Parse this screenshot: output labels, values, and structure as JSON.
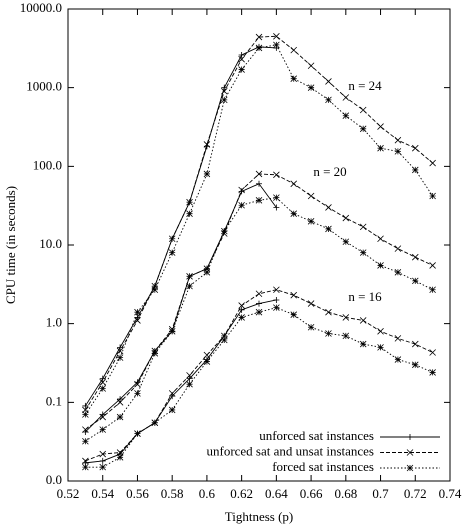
{
  "chart_data": {
    "type": "line",
    "xlabel": "Tightness (p)",
    "ylabel": "CPU time (in seconds)",
    "log_y": true,
    "legend": "lower right",
    "x": [
      0.53,
      0.54,
      0.55,
      0.56,
      0.57,
      0.58,
      0.59,
      0.6,
      0.61,
      0.62,
      0.63,
      0.64,
      0.65,
      0.66,
      0.67,
      0.68,
      0.69,
      0.7,
      0.71,
      0.72,
      0.73
    ],
    "annotations": [
      "n = 16",
      "n = 20",
      "n = 24"
    ],
    "series": [
      {
        "name": "unforced sat instances",
        "color": "#000000",
        "dash": "solid",
        "marker": "+",
        "values_by_n": [
          [
            0.017,
            0.018,
            0.022,
            0.04,
            0.055,
            0.12,
            0.2,
            0.35,
            0.7,
            1.5,
            1.8,
            2,
            null,
            null,
            null,
            null,
            null,
            null,
            null,
            null,
            null
          ],
          [
            0.042,
            0.07,
            0.11,
            0.18,
            0.45,
            0.8,
            4,
            5,
            15,
            48,
            60,
            30,
            null,
            null,
            null,
            null,
            null,
            null,
            null,
            null,
            null
          ],
          [
            0.09,
            0.2,
            0.5,
            1.2,
            3,
            12,
            35,
            180,
            1000,
            2600,
            3300,
            3200,
            null,
            null,
            null,
            null,
            null,
            null,
            null,
            null,
            null
          ]
        ]
      },
      {
        "name": "unforced sat and unsat instances",
        "color": "#000000",
        "dash": "dashed",
        "marker": "x",
        "values_by_n": [
          [
            0.018,
            0.022,
            0.023,
            0.04,
            0.055,
            0.13,
            0.22,
            0.4,
            0.7,
            1.7,
            2.4,
            2.7,
            2.3,
            1.8,
            1.4,
            1.2,
            1.1,
            0.8,
            0.65,
            0.55,
            0.43
          ],
          [
            0.045,
            0.065,
            0.1,
            0.17,
            0.45,
            0.85,
            4,
            5,
            14,
            50,
            80,
            78,
            60,
            42,
            30,
            22,
            17,
            12,
            9,
            7,
            5.5
          ],
          [
            0.08,
            0.18,
            0.45,
            1.1,
            3,
            12,
            35,
            190,
            900,
            2300,
            4400,
            4500,
            3000,
            1900,
            1200,
            750,
            520,
            320,
            215,
            170,
            110
          ]
        ]
      },
      {
        "name": "forced sat instances",
        "color": "#000000",
        "dash": "dotted",
        "marker": "*",
        "values_by_n": [
          [
            0.015,
            0.015,
            0.02,
            0.04,
            0.055,
            0.08,
            0.17,
            0.33,
            0.62,
            1.2,
            1.4,
            1.6,
            1.3,
            0.9,
            0.75,
            0.7,
            0.55,
            0.5,
            0.35,
            0.3,
            0.24
          ],
          [
            0.032,
            0.045,
            0.065,
            0.13,
            0.42,
            0.8,
            3,
            4.5,
            15,
            32,
            37,
            40,
            25,
            20,
            16,
            11,
            8,
            5.5,
            4.5,
            3.5,
            2.7
          ],
          [
            0.07,
            0.15,
            0.37,
            1.4,
            2.7,
            8,
            25,
            80,
            700,
            1700,
            3200,
            3500,
            1300,
            1000,
            700,
            440,
            300,
            170,
            155,
            90,
            42
          ]
        ]
      }
    ],
    "xlim": [
      0.52,
      0.74
    ],
    "xticks": [
      0.52,
      0.54,
      0.56,
      0.58,
      0.6,
      0.62,
      0.64,
      0.66,
      0.68,
      0.7,
      0.72,
      0.74
    ],
    "ylim": [
      0.01,
      10000
    ],
    "yticks": [
      {
        "value": 0.01,
        "label": "0.0"
      },
      {
        "value": 0.1,
        "label": "0.1"
      },
      {
        "value": 1,
        "label": "1.0"
      },
      {
        "value": 10,
        "label": "10.0"
      },
      {
        "value": 100,
        "label": "100.0"
      },
      {
        "value": 1000,
        "label": "1000.0"
      },
      {
        "value": 10000,
        "label": "10000.0"
      }
    ]
  }
}
